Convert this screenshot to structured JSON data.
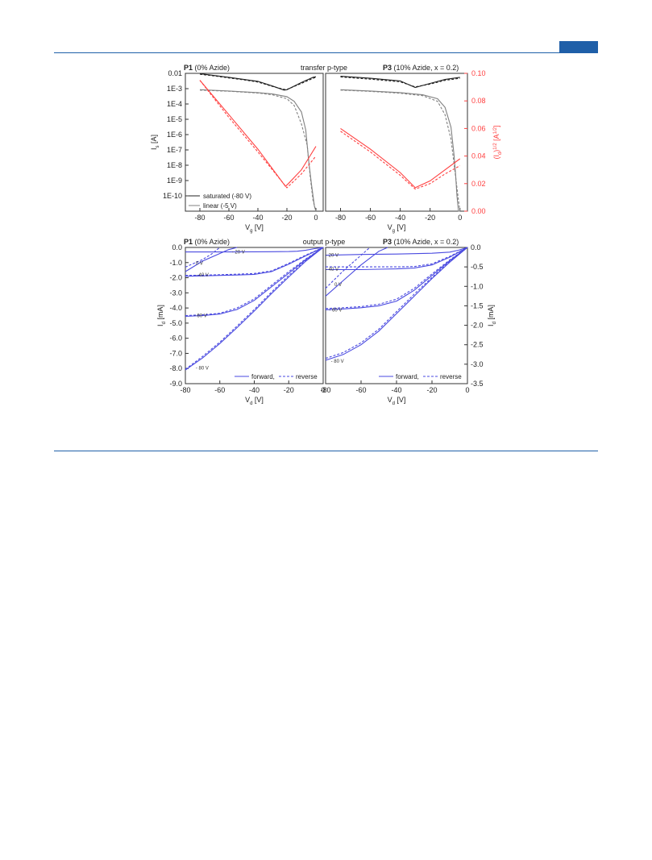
{
  "page": {
    "accent_color": "#1f5fa8",
    "header_tab_color": "#1f5fa8"
  },
  "colors": {
    "black": "#222222",
    "gray": "#808080",
    "red": "#ff4040",
    "blue": "#4a4ae0"
  },
  "figure": {
    "transfer_label": "transfer p-type",
    "output_label": "output p-type"
  },
  "chart_data": [
    {
      "id": "transfer_p1",
      "type": "line",
      "title_bold": "P1",
      "title_rest": "(0% Azide)",
      "xlabel": "V_g [V]",
      "ylabel": "I_s [A]",
      "xlim": [
        -90,
        5
      ],
      "ylim_log10": [
        -11,
        -2
      ],
      "x_ticks": [
        -80,
        -60,
        -40,
        -20,
        0
      ],
      "y_ticks": [
        "0.01",
        "1E-3",
        "1E-4",
        "1E-5",
        "1E-6",
        "1E-7",
        "1E-8",
        "1E-9",
        "1E-10"
      ],
      "y_tick_values": [
        0.01,
        0.001,
        0.0001,
        1e-05,
        1e-06,
        1e-07,
        1e-08,
        1e-09,
        1e-10
      ],
      "y2": {
        "label": "(I_d)^1/2 [A^1/2]",
        "lim": [
          0,
          0.1
        ]
      },
      "legend": [
        "saturated (-80 V)",
        "linear (-5 V)"
      ],
      "series": [
        {
          "name": "saturated (-80 V)",
          "axis": "log",
          "color_key": "black",
          "dash": false,
          "x": [
            -80,
            -70,
            -60,
            -50,
            -40,
            -30,
            -22,
            -20,
            -10,
            -2,
            0
          ],
          "y": [
            0.0095,
            0.0072,
            0.0055,
            0.0041,
            0.003,
            0.0015,
            0.0008,
            0.00085,
            0.0025,
            0.0055,
            0.006
          ]
        },
        {
          "axis": "log",
          "color_key": "black",
          "dash": true,
          "x": [
            -80,
            -70,
            -60,
            -50,
            -40,
            -30,
            -22,
            -20,
            -10,
            -2,
            0
          ],
          "y": [
            0.0088,
            0.0068,
            0.005,
            0.0038,
            0.0027,
            0.0014,
            0.0009,
            0.0009,
            0.0022,
            0.0048,
            0.0055
          ]
        },
        {
          "name": "linear (-5 V)",
          "axis": "log",
          "color_key": "gray",
          "dash": false,
          "x": [
            -80,
            -60,
            -40,
            -30,
            -20,
            -15,
            -10,
            -7,
            -5,
            -3,
            -2,
            -1,
            0
          ],
          "y": [
            0.00085,
            0.0007,
            0.00055,
            0.00045,
            0.0003,
            0.00015,
            3e-05,
            2e-06,
            2e-08,
            5e-10,
            1e-10,
            2e-11,
            1e-11
          ]
        },
        {
          "axis": "log",
          "color_key": "gray",
          "dash": true,
          "x": [
            -80,
            -60,
            -40,
            -30,
            -20,
            -15,
            -10,
            -6,
            -4,
            -2,
            0
          ],
          "y": [
            0.0008,
            0.00068,
            0.00052,
            0.0004,
            0.00022,
            8e-05,
            5e-06,
            2e-07,
            2e-09,
            5e-11,
            1e-11
          ]
        },
        {
          "axis": "lin",
          "color_key": "red",
          "dash": false,
          "x": [
            -80,
            -60,
            -40,
            -21,
            -19,
            -10,
            0
          ],
          "y": [
            0.095,
            0.07,
            0.045,
            0.018,
            0.02,
            0.03,
            0.047
          ]
        },
        {
          "axis": "lin",
          "color_key": "red",
          "dash": true,
          "x": [
            -80,
            -60,
            -40,
            -20,
            -18,
            -10,
            0
          ],
          "y": [
            0.095,
            0.068,
            0.043,
            0.017,
            0.019,
            0.027,
            0.04
          ]
        }
      ]
    },
    {
      "id": "transfer_p3",
      "type": "line",
      "title_bold": "P3",
      "title_rest": "(10% Azide, x = 0.2)",
      "xlabel": "V_g [V]",
      "ylabel": "(I_d)^1/2 [A^1/2]",
      "xlim": [
        -90,
        5
      ],
      "ylim_log10": [
        -11,
        -2
      ],
      "x_ticks": [
        -80,
        -60,
        -40,
        -20,
        0
      ],
      "y2": {
        "label": "(I_d)^1/2 [A^1/2]",
        "lim": [
          0,
          0.1
        ],
        "ticks": [
          "0.00",
          "0.02",
          "0.04",
          "0.06",
          "0.08",
          "0.10"
        ],
        "tick_values": [
          0,
          0.02,
          0.04,
          0.06,
          0.08,
          0.1
        ]
      },
      "series": [
        {
          "axis": "log",
          "color_key": "black",
          "dash": false,
          "x": [
            -80,
            -60,
            -40,
            -30,
            -20,
            -10,
            0
          ],
          "y": [
            0.0065,
            0.0048,
            0.0032,
            0.0012,
            0.0022,
            0.004,
            0.0055
          ]
        },
        {
          "axis": "log",
          "color_key": "black",
          "dash": true,
          "x": [
            -80,
            -60,
            -40,
            -30,
            -20,
            -10,
            0
          ],
          "y": [
            0.0058,
            0.0042,
            0.0028,
            0.0013,
            0.002,
            0.0035,
            0.0048
          ]
        },
        {
          "axis": "log",
          "color_key": "gray",
          "dash": false,
          "x": [
            -80,
            -60,
            -40,
            -25,
            -15,
            -10,
            -6,
            -4,
            -3,
            -2,
            -1,
            0
          ],
          "y": [
            0.00085,
            0.0007,
            0.00055,
            0.0004,
            0.00022,
            6e-05,
            3e-06,
            5e-08,
            3e-09,
            1e-10,
            1e-11,
            1e-11
          ]
        },
        {
          "axis": "log",
          "color_key": "gray",
          "dash": true,
          "x": [
            -80,
            -60,
            -40,
            -25,
            -15,
            -10,
            -6,
            -3,
            -1,
            0
          ],
          "y": [
            0.0008,
            0.00066,
            0.0005,
            0.00035,
            0.00015,
            2e-05,
            5e-07,
            2e-09,
            5e-11,
            1e-11
          ]
        },
        {
          "axis": "lin",
          "color_key": "red",
          "dash": false,
          "x": [
            -80,
            -60,
            -40,
            -30,
            -20,
            -10,
            0
          ],
          "y": [
            0.06,
            0.045,
            0.028,
            0.017,
            0.022,
            0.03,
            0.038
          ]
        },
        {
          "axis": "lin",
          "color_key": "red",
          "dash": true,
          "x": [
            -80,
            -60,
            -40,
            -30,
            -20,
            -10,
            0
          ],
          "y": [
            0.058,
            0.043,
            0.026,
            0.016,
            0.02,
            0.027,
            0.033
          ]
        }
      ]
    },
    {
      "id": "output_p1",
      "type": "line",
      "title_bold": "P1",
      "title_rest": "(0% Azide)",
      "xlabel": "V_d [V]",
      "ylabel": "I_d [mA]",
      "xlim": [
        -80,
        0
      ],
      "ylim": [
        -9,
        0
      ],
      "x_ticks": [
        -80,
        -60,
        -40,
        -20,
        0
      ],
      "y_ticks": [
        "0.0",
        "-1.0",
        "-2.0",
        "-3.0",
        "-4.0",
        "-5.0",
        "-6.0",
        "-7.0",
        "-8.0",
        "-9.0"
      ],
      "y_tick_values": [
        0,
        -1,
        -2,
        -3,
        -4,
        -5,
        -6,
        -7,
        -8,
        -9
      ],
      "curve_labels": [
        {
          "text": "- 20 V",
          "x": -53,
          "y": -0.3
        },
        {
          "text": "0 V",
          "x": -74,
          "y": -1.05
        },
        {
          "text": "- 40 V",
          "x": -74,
          "y": -1.82
        },
        {
          "text": "- 60 V",
          "x": -75,
          "y": -4.5
        },
        {
          "text": "- 80 V",
          "x": -74,
          "y": -7.95
        }
      ],
      "legend": [
        "forward,",
        "reverse"
      ],
      "series": [
        {
          "name": "- 80 V",
          "dash": false,
          "x": [
            -80,
            -70,
            -60,
            -50,
            -40,
            -30,
            -20,
            -10,
            0
          ],
          "y": [
            -8.1,
            -7.3,
            -6.35,
            -5.3,
            -4.2,
            -3.05,
            -1.95,
            -0.9,
            0
          ]
        },
        {
          "name": "- 60 V",
          "dash": false,
          "x": [
            -80,
            -70,
            -60,
            -50,
            -40,
            -30,
            -20,
            -10,
            0
          ],
          "y": [
            -4.55,
            -4.5,
            -4.4,
            -4.1,
            -3.5,
            -2.6,
            -1.7,
            -0.8,
            0
          ]
        },
        {
          "name": "- 40 V",
          "dash": false,
          "x": [
            -80,
            -70,
            -60,
            -50,
            -40,
            -30,
            -20,
            -10,
            0
          ],
          "y": [
            -1.9,
            -1.88,
            -1.85,
            -1.82,
            -1.78,
            -1.6,
            -1.1,
            -0.55,
            0
          ]
        },
        {
          "name": "- 20 V",
          "dash": false,
          "x": [
            -80,
            -60,
            -40,
            -30,
            -20,
            -15,
            -10,
            -5,
            0
          ],
          "y": [
            -0.3,
            -0.3,
            -0.29,
            -0.28,
            -0.27,
            -0.25,
            -0.18,
            -0.08,
            0
          ]
        },
        {
          "name": "0 V",
          "dash": false,
          "x": [
            -80,
            -70,
            -60,
            -55,
            -50
          ],
          "y": [
            -1.6,
            -0.9,
            -0.4,
            -0.15,
            0
          ]
        },
        {
          "dash": true,
          "x": [
            -80,
            -70,
            -60,
            -50,
            -40,
            -30,
            -20,
            -10,
            0
          ],
          "y": [
            -8.05,
            -7.2,
            -6.25,
            -5.2,
            -4.1,
            -2.95,
            -1.85,
            -0.85,
            0
          ]
        },
        {
          "dash": true,
          "x": [
            -80,
            -70,
            -60,
            -50,
            -40,
            -30,
            -20,
            -10,
            0
          ],
          "y": [
            -4.5,
            -4.45,
            -4.35,
            -4.0,
            -3.4,
            -2.5,
            -1.6,
            -0.75,
            0
          ]
        },
        {
          "dash": true,
          "x": [
            -80,
            -70,
            -60,
            -50,
            -40,
            -30,
            -20,
            -10,
            0
          ],
          "y": [
            -1.85,
            -1.83,
            -1.8,
            -1.77,
            -1.72,
            -1.55,
            -1.05,
            -0.5,
            0
          ]
        },
        {
          "dash": true,
          "x": [
            -80,
            -70,
            -65,
            -60
          ],
          "y": [
            -1.3,
            -0.8,
            -0.45,
            0
          ]
        }
      ]
    },
    {
      "id": "output_p3",
      "type": "line",
      "title_bold": "P3",
      "title_rest": "(10% Azide, x = 0.2)",
      "xlabel": "V_d [V]",
      "ylabel": "I_d [mA]",
      "xlim": [
        -80,
        0
      ],
      "ylim": [
        -3.5,
        0
      ],
      "x_ticks": [
        -80,
        -60,
        -40,
        -20,
        0
      ],
      "y_ticks": [
        "0.0",
        "-0.5",
        "-1.0",
        "-1.5",
        "-2.0",
        "-2.5",
        "-3.0",
        "-3.5"
      ],
      "y_tick_values": [
        0,
        -0.5,
        -1,
        -1.5,
        -2,
        -2.5,
        -3,
        -3.5
      ],
      "curve_labels": [
        {
          "text": "- 20 V",
          "x": -80,
          "y": -0.2
        },
        {
          "text": "- 40 V",
          "x": -80,
          "y": -0.56
        },
        {
          "text": "0 V",
          "x": -75,
          "y": -0.95
        },
        {
          "text": "- 60 V",
          "x": -78,
          "y": -1.6
        },
        {
          "text": "- 80 V",
          "x": -77,
          "y": -2.92
        }
      ],
      "legend": [
        "forward,",
        "reverse"
      ],
      "series": [
        {
          "name": "- 80 V",
          "dash": false,
          "x": [
            -80,
            -70,
            -60,
            -50,
            -40,
            -30,
            -20,
            -10,
            0
          ],
          "y": [
            -2.9,
            -2.75,
            -2.5,
            -2.15,
            -1.7,
            -1.25,
            -0.8,
            -0.38,
            0
          ]
        },
        {
          "name": "- 60 V",
          "dash": false,
          "x": [
            -80,
            -70,
            -60,
            -50,
            -40,
            -30,
            -20,
            -10,
            0
          ],
          "y": [
            -1.6,
            -1.58,
            -1.55,
            -1.5,
            -1.38,
            -1.1,
            -0.72,
            -0.34,
            0
          ]
        },
        {
          "name": "- 40 V",
          "dash": false,
          "x": [
            -80,
            -70,
            -60,
            -50,
            -40,
            -30,
            -20,
            -10,
            0
          ],
          "y": [
            -0.57,
            -0.57,
            -0.57,
            -0.56,
            -0.55,
            -0.53,
            -0.45,
            -0.25,
            0
          ]
        },
        {
          "name": "- 20 V",
          "dash": false,
          "x": [
            -80,
            -60,
            -40,
            -30,
            -20,
            -10,
            -5,
            0
          ],
          "y": [
            -0.2,
            -0.18,
            -0.17,
            -0.16,
            -0.15,
            -0.12,
            -0.07,
            0
          ]
        },
        {
          "name": "0 V",
          "dash": false,
          "x": [
            -80,
            -70,
            -60,
            -50,
            -45
          ],
          "y": [
            -1.25,
            -0.85,
            -0.45,
            -0.1,
            0
          ]
        },
        {
          "dash": true,
          "x": [
            -80,
            -70,
            -60,
            -50,
            -40,
            -30,
            -20,
            -10,
            0
          ],
          "y": [
            -2.85,
            -2.7,
            -2.45,
            -2.1,
            -1.65,
            -1.2,
            -0.77,
            -0.36,
            0
          ]
        },
        {
          "dash": true,
          "x": [
            -80,
            -70,
            -60,
            -50,
            -40,
            -30,
            -20,
            -10,
            0
          ],
          "y": [
            -1.57,
            -1.55,
            -1.52,
            -1.46,
            -1.33,
            -1.05,
            -0.68,
            -0.32,
            0
          ]
        },
        {
          "dash": true,
          "x": [
            -80,
            -70,
            -60,
            -50,
            -40,
            -30,
            -20,
            -10,
            0
          ],
          "y": [
            -0.5,
            -0.5,
            -0.5,
            -0.5,
            -0.5,
            -0.49,
            -0.42,
            -0.23,
            0
          ]
        },
        {
          "dash": true,
          "x": [
            -80,
            -70,
            -60,
            -55
          ],
          "y": [
            -1.05,
            -0.6,
            -0.2,
            0
          ]
        }
      ]
    }
  ]
}
